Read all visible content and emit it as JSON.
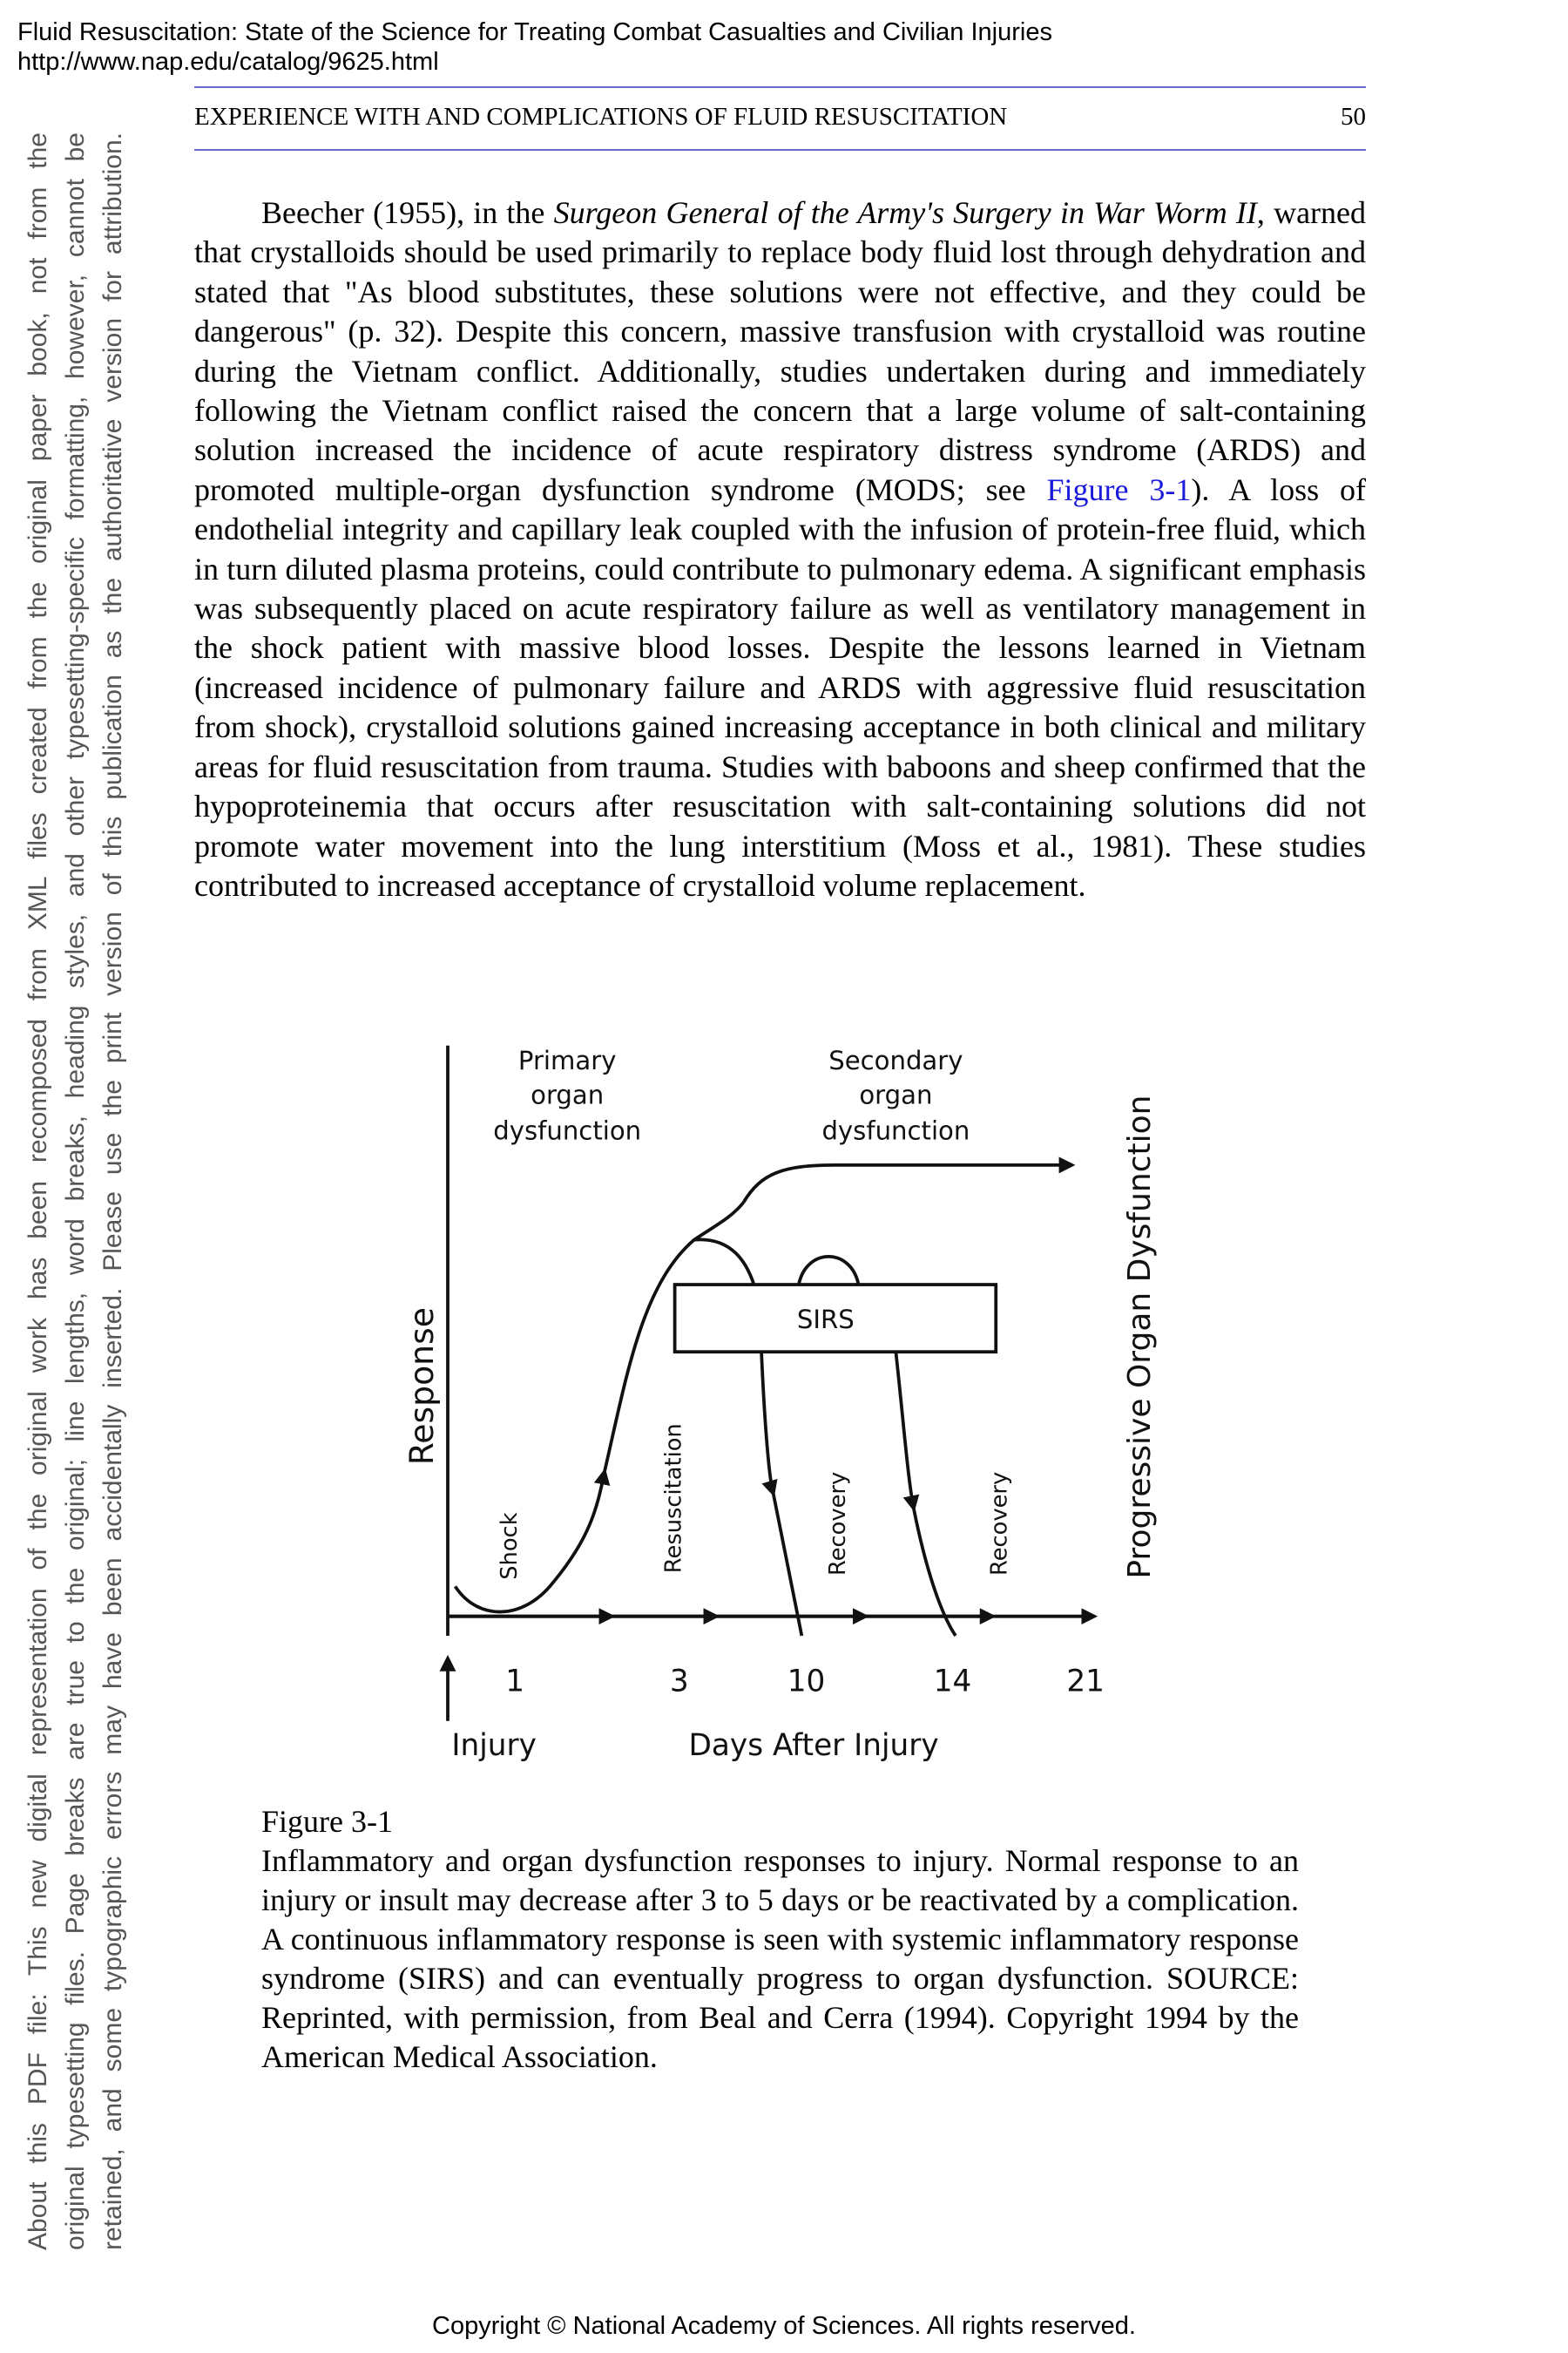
{
  "header": {
    "title": "Fluid Resuscitation: State of the Science for Treating Combat Casualties and Civilian Injuries",
    "url": "http://www.nap.edu/catalog/9625.html"
  },
  "running_head": {
    "title": "EXPERIENCE WITH AND COMPLICATIONS OF FLUID RESUSCITATION",
    "page": "50"
  },
  "body": {
    "segments": [
      "Beecher (1955), in the ",
      "Surgeon General of the Army's Surgery in War Worm II",
      ", warned that crystalloids should be used primarily to replace body fluid lost through dehydration and stated that \"As blood substitutes, these solutions were not effective, and they could be dangerous\" (p. 32). Despite this concern, massive transfusion with crystalloid was routine during the Vietnam conflict. Additionally, studies undertaken during and immediately following the Vietnam conflict raised the concern that a large volume of salt-containing solution increased the incidence of acute respiratory distress syndrome (ARDS) and promoted multiple-organ dysfunction syndrome (MODS; see ",
      "Figure 3-1",
      "). A loss of endothelial integrity and capillary leak coupled with the infusion of protein-free fluid, which in turn diluted plasma proteins, could contribute to pulmonary edema. A significant emphasis was subsequently placed on acute respiratory failure as well as ventilatory management in the shock patient with massive blood losses. Despite the lessons learned in Vietnam (increased incidence of pulmonary failure and ARDS with aggressive fluid resuscitation from shock), crystalloid solutions gained increasing acceptance in both clinical and military areas for fluid resuscitation from trauma. Studies with baboons and sheep confirmed that the hypoproteinemia that occurs after resuscitation with salt-containing solutions did not promote water movement into the lung interstitium (Moss et al., 1981). These studies contributed to increased acceptance of crystalloid volume replacement."
    ]
  },
  "figure": {
    "primary": [
      "Primary",
      "organ",
      "dysfunction"
    ],
    "secondary": [
      "Secondary",
      "organ",
      "dysfunction"
    ],
    "box": "SIRS",
    "y_label": "Response",
    "right_label": "Progressive Organ Dysfunction",
    "phases": [
      "Shock",
      "Resuscitation",
      "Recovery",
      "Recovery"
    ],
    "ticks": [
      "1",
      "3",
      "10",
      "14",
      "21"
    ],
    "injury": "Injury",
    "x_label": "Days After Injury"
  },
  "caption": {
    "label": "Figure 3-1",
    "text": "Inflammatory and organ dysfunction responses to injury. Normal response to an injury or insult may decrease after 3 to 5 days or be reactivated by a complication. A continuous inflammatory response is seen with systemic inflammatory response syndrome (SIRS) and can eventually progress to organ dysfunction. SOURCE: Reprinted, with permission, from Beal and Cerra (1994). Copyright 1994 by the American Medical Association."
  },
  "sidebar": {
    "lines": [
      "About this PDF file: This new digital representation of the original work has been recomposed from XML files created from the original paper book, not from the",
      "original typesetting files. Page breaks are true to the original; line lengths, word breaks, heading styles, and other typesetting-specific formatting, however, cannot be",
      "retained, and some typographic errors may have been accidentally inserted. Please use the print version of this publication as the authoritative version for attribution."
    ]
  },
  "footer": "Copyright © National Academy of Sciences. All rights reserved."
}
